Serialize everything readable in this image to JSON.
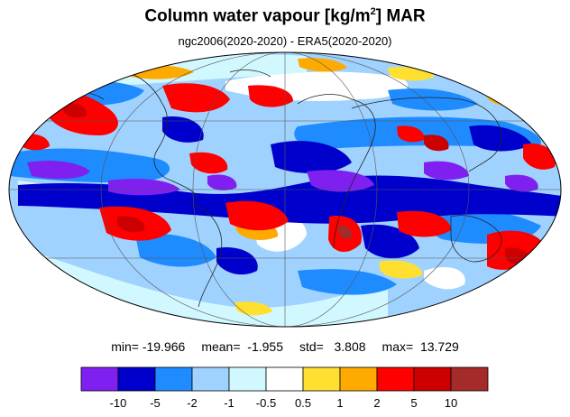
{
  "title": {
    "main": "Column water vapour [kg/m",
    "sup": "2",
    "suffix": "] MAR"
  },
  "subtitle": "ngc2006(2020-2020) - ERA5(2020-2020)",
  "stats": {
    "min": "min= -19.966",
    "mean": "mean=  -1.955",
    "std": "std=   3.808",
    "max": "max=  13.729"
  },
  "colorbar": {
    "colors": [
      "#8020f0",
      "#0000cc",
      "#1e8cff",
      "#a0d2ff",
      "#d2f8ff",
      "#ffffff",
      "#ffe030",
      "#ffaa00",
      "#ff0000",
      "#cc0000",
      "#a52a2a"
    ],
    "labels": [
      "-10",
      "-5",
      "-2",
      "-1",
      "-0.5",
      "0.5",
      "1",
      "2",
      "5",
      "10"
    ]
  }
}
